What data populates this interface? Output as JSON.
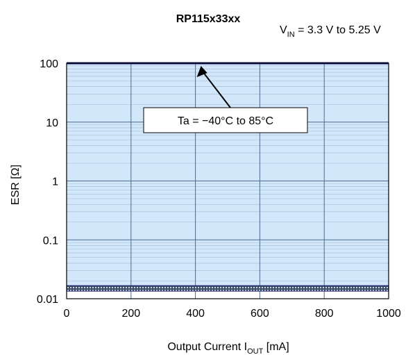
{
  "chart_data": {
    "type": "area",
    "title": "RP115x33xx",
    "subtitle": {
      "prefix": "V",
      "sub": "IN",
      "suffix": " = 3.3 V to 5.25 V"
    },
    "xlabel": {
      "prefix": "Output Current I",
      "sub": "OUT",
      "suffix": " [mA]"
    },
    "ylabel": "ESR [Ω]",
    "x_ticks": [
      0,
      200,
      400,
      600,
      800,
      1000
    ],
    "y_ticks": [
      {
        "value": 0.01,
        "label": "0.01"
      },
      {
        "value": 0.1,
        "label": "0.1"
      },
      {
        "value": 1,
        "label": "1"
      },
      {
        "value": 10,
        "label": "10"
      },
      {
        "value": 100,
        "label": "100"
      }
    ],
    "xlim": [
      0,
      1000
    ],
    "ylim": [
      0.01,
      100
    ],
    "y_scale": "log",
    "grid": true,
    "stable_region": {
      "x": [
        0,
        1000
      ],
      "upper_esr": 100,
      "lower_esr": 0.015
    },
    "annotation": {
      "text": "Ta = −40°C to 85°C",
      "points_to": {
        "x": 400,
        "y": 100
      }
    },
    "colors": {
      "region_fill": "#d3e7fb",
      "boundary": "#1a1a6e",
      "grid_major": "#4a6b8c",
      "grid_minor": "#9fb8d0"
    }
  }
}
